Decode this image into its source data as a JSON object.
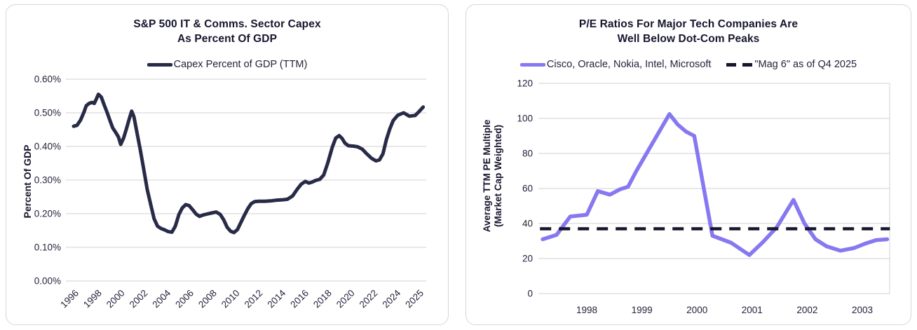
{
  "chart_data": [
    {
      "id": "capex",
      "type": "line",
      "title_line1": "S&P 500 IT & Comms. Sector Capex",
      "title_line2": "As Percent Of GDP",
      "y_axis_label": "Percent Of GDP",
      "legend": [
        {
          "label": "Capex Percent of GDP (TTM)",
          "color": "#272b47",
          "dashed": false
        }
      ],
      "x_tick_labels": [
        "1996",
        "1998",
        "2000",
        "2002",
        "2004",
        "2006",
        "2008",
        "2010",
        "2012",
        "2014",
        "2016",
        "2018",
        "2020",
        "2022",
        "2024",
        "2025"
      ],
      "x_axis_type": "category: 2-year steps, final step 2024 to 2025",
      "y_tick_values": [
        0.0,
        0.1,
        0.2,
        0.3,
        0.4,
        0.5,
        0.6
      ],
      "y_tick_labels": [
        "0.00%",
        "0.10%",
        "0.20%",
        "0.30%",
        "0.40%",
        "0.50%",
        "0.60%"
      ],
      "ylim": [
        0.0,
        0.6
      ],
      "series": [
        {
          "name": "Capex Percent of GDP (TTM)",
          "color": "#272b47",
          "dashed": false,
          "points": [
            [
              1996.0,
              0.46
            ],
            [
              1996.3,
              0.463
            ],
            [
              1996.6,
              0.478
            ],
            [
              1996.9,
              0.502
            ],
            [
              1997.1,
              0.521
            ],
            [
              1997.35,
              0.528
            ],
            [
              1997.6,
              0.531
            ],
            [
              1997.8,
              0.528
            ],
            [
              1998.0,
              0.543
            ],
            [
              1998.15,
              0.555
            ],
            [
              1998.4,
              0.547
            ],
            [
              1998.65,
              0.524
            ],
            [
              1998.9,
              0.502
            ],
            [
              1999.15,
              0.478
            ],
            [
              1999.4,
              0.455
            ],
            [
              1999.65,
              0.442
            ],
            [
              1999.9,
              0.428
            ],
            [
              2000.1,
              0.406
            ],
            [
              2000.35,
              0.425
            ],
            [
              2000.6,
              0.453
            ],
            [
              2000.85,
              0.483
            ],
            [
              2001.05,
              0.505
            ],
            [
              2001.25,
              0.488
            ],
            [
              2001.5,
              0.443
            ],
            [
              2001.8,
              0.39
            ],
            [
              2002.1,
              0.332
            ],
            [
              2002.4,
              0.272
            ],
            [
              2002.7,
              0.228
            ],
            [
              2003.0,
              0.185
            ],
            [
              2003.3,
              0.163
            ],
            [
              2003.6,
              0.156
            ],
            [
              2003.9,
              0.152
            ],
            [
              2004.2,
              0.147
            ],
            [
              2004.55,
              0.145
            ],
            [
              2004.85,
              0.163
            ],
            [
              2005.15,
              0.197
            ],
            [
              2005.45,
              0.217
            ],
            [
              2005.75,
              0.227
            ],
            [
              2006.05,
              0.224
            ],
            [
              2006.35,
              0.212
            ],
            [
              2006.65,
              0.199
            ],
            [
              2006.95,
              0.192
            ],
            [
              2007.25,
              0.196
            ],
            [
              2007.6,
              0.199
            ],
            [
              2008.0,
              0.202
            ],
            [
              2008.4,
              0.205
            ],
            [
              2008.75,
              0.198
            ],
            [
              2009.05,
              0.182
            ],
            [
              2009.35,
              0.16
            ],
            [
              2009.65,
              0.148
            ],
            [
              2009.95,
              0.144
            ],
            [
              2010.25,
              0.153
            ],
            [
              2010.55,
              0.174
            ],
            [
              2010.85,
              0.195
            ],
            [
              2011.15,
              0.215
            ],
            [
              2011.45,
              0.23
            ],
            [
              2011.75,
              0.236
            ],
            [
              2012.1,
              0.237
            ],
            [
              2012.6,
              0.237
            ],
            [
              2013.1,
              0.238
            ],
            [
              2013.6,
              0.24
            ],
            [
              2014.1,
              0.241
            ],
            [
              2014.6,
              0.243
            ],
            [
              2015.05,
              0.253
            ],
            [
              2015.45,
              0.273
            ],
            [
              2015.8,
              0.288
            ],
            [
              2016.15,
              0.296
            ],
            [
              2016.45,
              0.291
            ],
            [
              2016.75,
              0.294
            ],
            [
              2017.05,
              0.299
            ],
            [
              2017.4,
              0.302
            ],
            [
              2017.75,
              0.315
            ],
            [
              2018.1,
              0.35
            ],
            [
              2018.5,
              0.398
            ],
            [
              2018.8,
              0.425
            ],
            [
              2019.1,
              0.432
            ],
            [
              2019.35,
              0.424
            ],
            [
              2019.6,
              0.41
            ],
            [
              2019.9,
              0.402
            ],
            [
              2020.3,
              0.401
            ],
            [
              2020.7,
              0.399
            ],
            [
              2021.1,
              0.392
            ],
            [
              2021.5,
              0.378
            ],
            [
              2021.9,
              0.365
            ],
            [
              2022.3,
              0.357
            ],
            [
              2022.6,
              0.36
            ],
            [
              2022.9,
              0.378
            ],
            [
              2023.2,
              0.42
            ],
            [
              2023.5,
              0.452
            ],
            [
              2023.8,
              0.477
            ],
            [
              2024.1,
              0.493
            ],
            [
              2024.35,
              0.5
            ],
            [
              2024.6,
              0.49
            ],
            [
              2024.85,
              0.492
            ],
            [
              2025.0,
              0.502
            ],
            [
              2025.2,
              0.517
            ]
          ]
        }
      ]
    },
    {
      "id": "pe_ratios",
      "type": "line",
      "title_line1": "P/E Ratios For Major Tech Companies Are",
      "title_line2": "Well Below Dot-Com Peaks",
      "y_axis_label_line1": "Average TTM PE Multiple",
      "y_axis_label_line2": "(Market Cap Weighted)",
      "legend": [
        {
          "label": "Cisco, Oracle, Nokia, Intel, Microsoft",
          "color": "#8678f0",
          "dashed": false
        },
        {
          "label": "\"Mag 6\" as of Q4 2025",
          "color": "#16162c",
          "dashed": true
        }
      ],
      "x_tick_labels": [
        "1998",
        "1999",
        "2000",
        "2001",
        "2002",
        "2003"
      ],
      "y_tick_values": [
        0,
        20,
        40,
        60,
        80,
        100,
        120
      ],
      "y_tick_labels": [
        "0",
        "20",
        "40",
        "60",
        "80",
        "100",
        "120"
      ],
      "ylim": [
        0,
        120
      ],
      "xlim": [
        1997.15,
        2003.5
      ],
      "series": [
        {
          "name": "Cisco, Oracle, Nokia, Intel, Microsoft",
          "color": "#8678f0",
          "dashed": false,
          "points": [
            [
              1997.2,
              31
            ],
            [
              1997.45,
              33.5
            ],
            [
              1997.7,
              44
            ],
            [
              1998.0,
              45
            ],
            [
              1998.2,
              58.5
            ],
            [
              1998.42,
              56.5
            ],
            [
              1998.6,
              59.5
            ],
            [
              1998.75,
              61
            ],
            [
              1998.9,
              70
            ],
            [
              1999.5,
              102.5
            ],
            [
              1999.65,
              96.5
            ],
            [
              1999.8,
              92.5
            ],
            [
              1999.95,
              90
            ],
            [
              2000.28,
              33
            ],
            [
              2000.45,
              31
            ],
            [
              2000.62,
              29
            ],
            [
              2000.95,
              22
            ],
            [
              2001.2,
              29.5
            ],
            [
              2001.45,
              38
            ],
            [
              2001.75,
              53.5
            ],
            [
              2001.95,
              40
            ],
            [
              2002.15,
              31
            ],
            [
              2002.35,
              27
            ],
            [
              2002.6,
              24.5
            ],
            [
              2002.85,
              26
            ],
            [
              2003.05,
              28.5
            ],
            [
              2003.25,
              30.5
            ],
            [
              2003.45,
              31
            ]
          ]
        },
        {
          "name": "\"Mag 6\" as of Q4 2025",
          "color": "#16162c",
          "dashed": true,
          "value": 37,
          "points": [
            [
              1997.15,
              37
            ],
            [
              2003.5,
              37
            ]
          ]
        }
      ]
    }
  ],
  "colors": {
    "title_text": "#16162e",
    "tick_text": "#23233d",
    "gridline": "#d9d9d9",
    "card_border": "#d5d5e2",
    "capex_line": "#272b47",
    "tech_pe_line": "#8678f0",
    "mag6_dash_line": "#16162c"
  }
}
